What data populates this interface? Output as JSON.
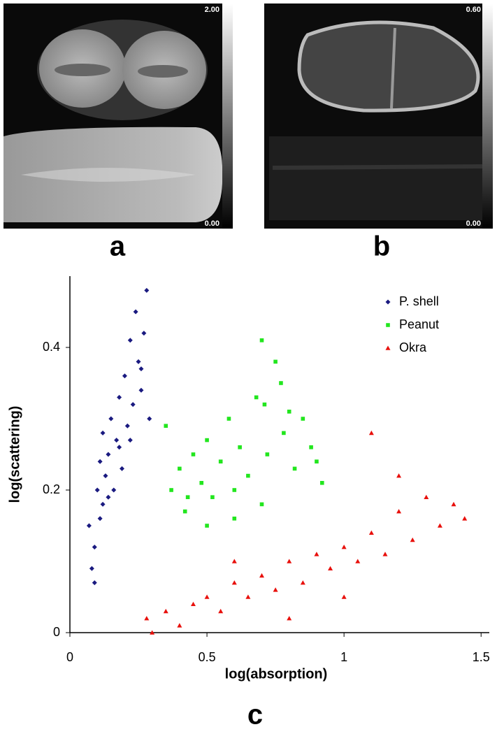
{
  "panels": [
    {
      "label": "a",
      "colorbar_max": "2.00",
      "colorbar_min": "0.00"
    },
    {
      "label": "b",
      "colorbar_max": "0.60",
      "colorbar_min": "0.00"
    }
  ],
  "chart_data": {
    "type": "scatter",
    "label": "c",
    "x_label": "log(absorption)",
    "y_label": "log(scattering)",
    "xlim": [
      0,
      1.53
    ],
    "ylim": [
      0,
      0.5
    ],
    "xticks": [
      0,
      0.5,
      1,
      1.5
    ],
    "yticks": [
      0,
      0.2,
      0.4
    ],
    "grid": false,
    "legend": "upper right",
    "series": [
      {
        "name": "P. shell",
        "color": "#1a1a80",
        "marker": "diamond",
        "x": [
          0.07,
          0.08,
          0.09,
          0.1,
          0.11,
          0.12,
          0.12,
          0.13,
          0.14,
          0.15,
          0.16,
          0.17,
          0.18,
          0.19,
          0.2,
          0.21,
          0.22,
          0.23,
          0.24,
          0.25,
          0.26,
          0.27,
          0.28,
          0.29,
          0.09,
          0.11,
          0.14,
          0.18,
          0.22,
          0.26
        ],
        "values": [
          0.15,
          0.09,
          0.12,
          0.2,
          0.24,
          0.18,
          0.28,
          0.22,
          0.25,
          0.3,
          0.2,
          0.27,
          0.33,
          0.23,
          0.36,
          0.29,
          0.41,
          0.32,
          0.45,
          0.38,
          0.34,
          0.42,
          0.48,
          0.3,
          0.07,
          0.16,
          0.19,
          0.26,
          0.27,
          0.37
        ]
      },
      {
        "name": "Peanut",
        "color": "#22e61e",
        "marker": "square",
        "x": [
          0.35,
          0.37,
          0.4,
          0.42,
          0.45,
          0.48,
          0.5,
          0.52,
          0.55,
          0.58,
          0.6,
          0.62,
          0.65,
          0.68,
          0.7,
          0.72,
          0.75,
          0.78,
          0.8,
          0.82,
          0.85,
          0.88,
          0.9,
          0.92,
          0.7,
          0.71,
          0.6,
          0.5,
          0.43,
          0.77
        ],
        "values": [
          0.29,
          0.2,
          0.23,
          0.17,
          0.25,
          0.21,
          0.27,
          0.19,
          0.24,
          0.3,
          0.2,
          0.26,
          0.22,
          0.33,
          0.41,
          0.25,
          0.38,
          0.28,
          0.31,
          0.23,
          0.3,
          0.26,
          0.24,
          0.21,
          0.18,
          0.32,
          0.16,
          0.15,
          0.19,
          0.35
        ]
      },
      {
        "name": "Okra",
        "color": "#e8100c",
        "marker": "triangle",
        "x": [
          0.28,
          0.3,
          0.35,
          0.4,
          0.45,
          0.5,
          0.55,
          0.6,
          0.65,
          0.7,
          0.75,
          0.8,
          0.85,
          0.9,
          0.95,
          1.0,
          1.05,
          1.1,
          1.15,
          1.2,
          1.25,
          1.3,
          1.35,
          1.4,
          1.44,
          0.6,
          0.8,
          1.0,
          1.2,
          1.1
        ],
        "values": [
          0.02,
          0.0,
          0.03,
          0.01,
          0.04,
          0.05,
          0.03,
          0.07,
          0.05,
          0.08,
          0.06,
          0.1,
          0.07,
          0.11,
          0.09,
          0.12,
          0.1,
          0.14,
          0.11,
          0.17,
          0.13,
          0.19,
          0.15,
          0.18,
          0.16,
          0.1,
          0.02,
          0.05,
          0.22,
          0.28
        ]
      }
    ]
  }
}
